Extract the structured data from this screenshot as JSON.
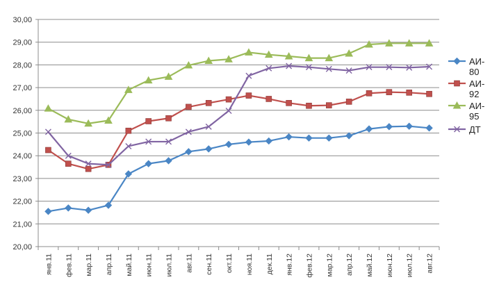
{
  "chart_data": {
    "type": "line",
    "title": "",
    "xlabel": "",
    "ylabel": "",
    "ylim": [
      20,
      30
    ],
    "yticks": [
      "20,00",
      "21,00",
      "22,00",
      "23,00",
      "24,00",
      "25,00",
      "26,00",
      "27,00",
      "28,00",
      "29,00",
      "30,00"
    ],
    "grid": true,
    "legend": "right",
    "categories": [
      "янв.11",
      "фев.11",
      "мар.11",
      "апр.11",
      "май.11",
      "июн.11",
      "июл.11",
      "авг.11",
      "сен.11",
      "окт.11",
      "ноя.11",
      "дек.11",
      "янв.12",
      "фев.12",
      "мар.12",
      "апр.12",
      "май.12",
      "июн.12",
      "июл.12",
      "авг.12"
    ],
    "series": [
      {
        "name": "АИ-80",
        "legend_lines": [
          "АИ-",
          "80"
        ],
        "color": "#4a86c5",
        "marker": "diamond",
        "values": [
          21.55,
          21.7,
          21.6,
          21.82,
          23.2,
          23.65,
          23.78,
          24.18,
          24.3,
          24.5,
          24.6,
          24.65,
          24.83,
          24.78,
          24.78,
          24.88,
          25.18,
          25.28,
          25.3,
          25.22
        ]
      },
      {
        "name": "АИ-92",
        "legend_lines": [
          "АИ-",
          "92"
        ],
        "color": "#c0504d",
        "marker": "square",
        "values": [
          24.25,
          23.65,
          23.42,
          23.6,
          25.1,
          25.52,
          25.65,
          26.15,
          26.32,
          26.48,
          26.65,
          26.5,
          26.32,
          26.2,
          26.22,
          26.38,
          26.75,
          26.8,
          26.78,
          26.72
        ]
      },
      {
        "name": "АИ-95",
        "legend_lines": [
          "АИ-",
          "95"
        ],
        "color": "#9bbb59",
        "marker": "triangle",
        "values": [
          26.08,
          25.6,
          25.42,
          25.55,
          26.9,
          27.32,
          27.48,
          27.98,
          28.18,
          28.25,
          28.55,
          28.45,
          28.38,
          28.3,
          28.3,
          28.5,
          28.9,
          28.95,
          28.95,
          28.95
        ]
      },
      {
        "name": "ДТ",
        "legend_lines": [
          "ДТ"
        ],
        "color": "#8064a2",
        "marker": "x",
        "values": [
          25.05,
          24.0,
          23.65,
          23.6,
          24.42,
          24.62,
          24.62,
          25.05,
          25.28,
          25.98,
          27.52,
          27.85,
          27.95,
          27.9,
          27.82,
          27.75,
          27.9,
          27.9,
          27.88,
          27.92
        ]
      }
    ]
  }
}
